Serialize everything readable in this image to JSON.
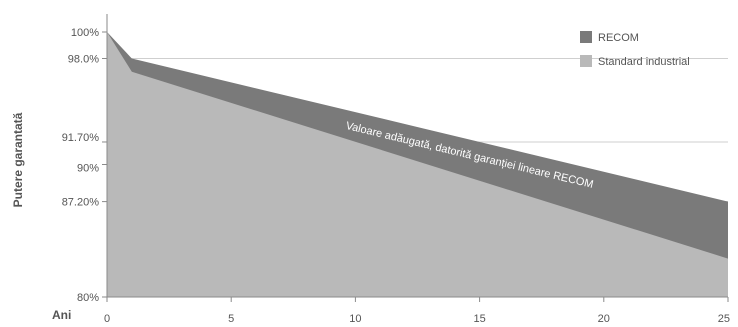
{
  "chart_data": {
    "type": "area",
    "ylabel": "Putere garantată",
    "xlabel": "Ani",
    "xlim": [
      0,
      25
    ],
    "ylim": [
      80,
      100
    ],
    "x_ticks": [
      0,
      5,
      10,
      15,
      20,
      25
    ],
    "x_tick_labels": [
      "0",
      "5",
      "10",
      "15",
      "20",
      "25"
    ],
    "y_ticks": [
      100,
      98.0,
      91.7,
      90,
      87.2,
      80
    ],
    "y_tick_labels": [
      "100%",
      "98.0%",
      "91.70%",
      "90%",
      "87.20%",
      "80%"
    ],
    "gridlines_y": [
      98.0,
      91.7,
      87.2
    ],
    "legend_position": "top-right",
    "series": [
      {
        "name": "RECOM",
        "color": "#7a7a7a",
        "x": [
          0,
          1,
          25
        ],
        "y": [
          100,
          98.0,
          87.2
        ]
      },
      {
        "name": "Standard industrial",
        "color": "#b9b9b9",
        "x": [
          0,
          1,
          25
        ],
        "y": [
          100,
          97.0,
          82.9
        ]
      }
    ],
    "annotation": {
      "text": "Valoare adăugată, datorită garanției lineare RECOM",
      "color": "#ffffff"
    }
  }
}
